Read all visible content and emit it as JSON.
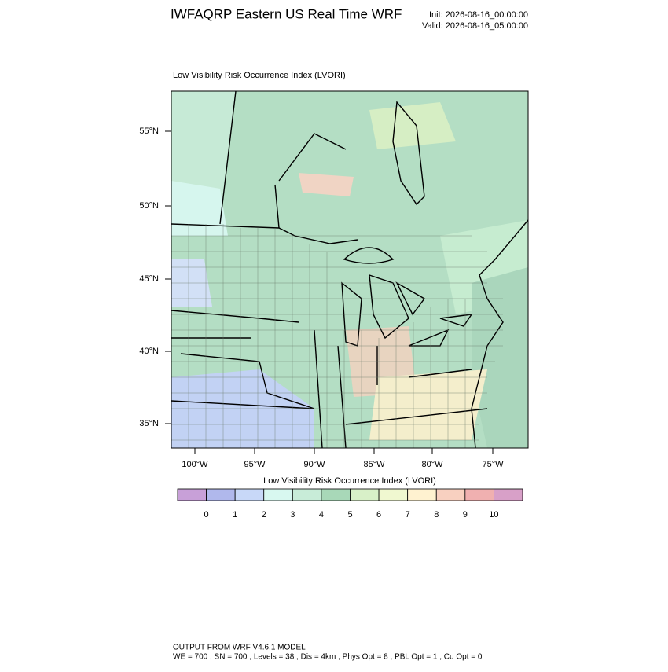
{
  "header": {
    "title": "IWFAQRP Eastern US Real Time WRF",
    "init": "Init: 2026-08-16_00:00:00",
    "valid": "Valid: 2026-08-16_05:00:00"
  },
  "map": {
    "subtitle": "Low Visibility Risk Occurrence Index   (LVORI)",
    "lat_labels": [
      "55°N",
      "50°N",
      "45°N",
      "40°N",
      "35°N"
    ],
    "lon_labels": [
      "100°W",
      "95°W",
      "90°W",
      "85°W",
      "80°W",
      "75°W"
    ]
  },
  "colorbar": {
    "title": "Low Visibility Risk Occurrence Index  (LVORI)",
    "colors": [
      "#c8a0d8",
      "#b0b8ec",
      "#c8d8f8",
      "#d8f8f0",
      "#c8ecd8",
      "#a8d8b8",
      "#d8f0c8",
      "#f0f8d0",
      "#fff2d0",
      "#f8d0c0",
      "#f0b0b0",
      "#d8a0c8"
    ],
    "labels": [
      0,
      1,
      2,
      3,
      4,
      5,
      6,
      7,
      8,
      9,
      10
    ]
  },
  "footer": {
    "line1": "OUTPUT FROM WRF V4.6.1 MODEL",
    "line2": "WE = 700 ; SN = 700 ; Levels = 38 ; Dis = 4km ; Phys Opt = 8 ; PBL Opt = 1 ; Cu Opt = 0"
  }
}
